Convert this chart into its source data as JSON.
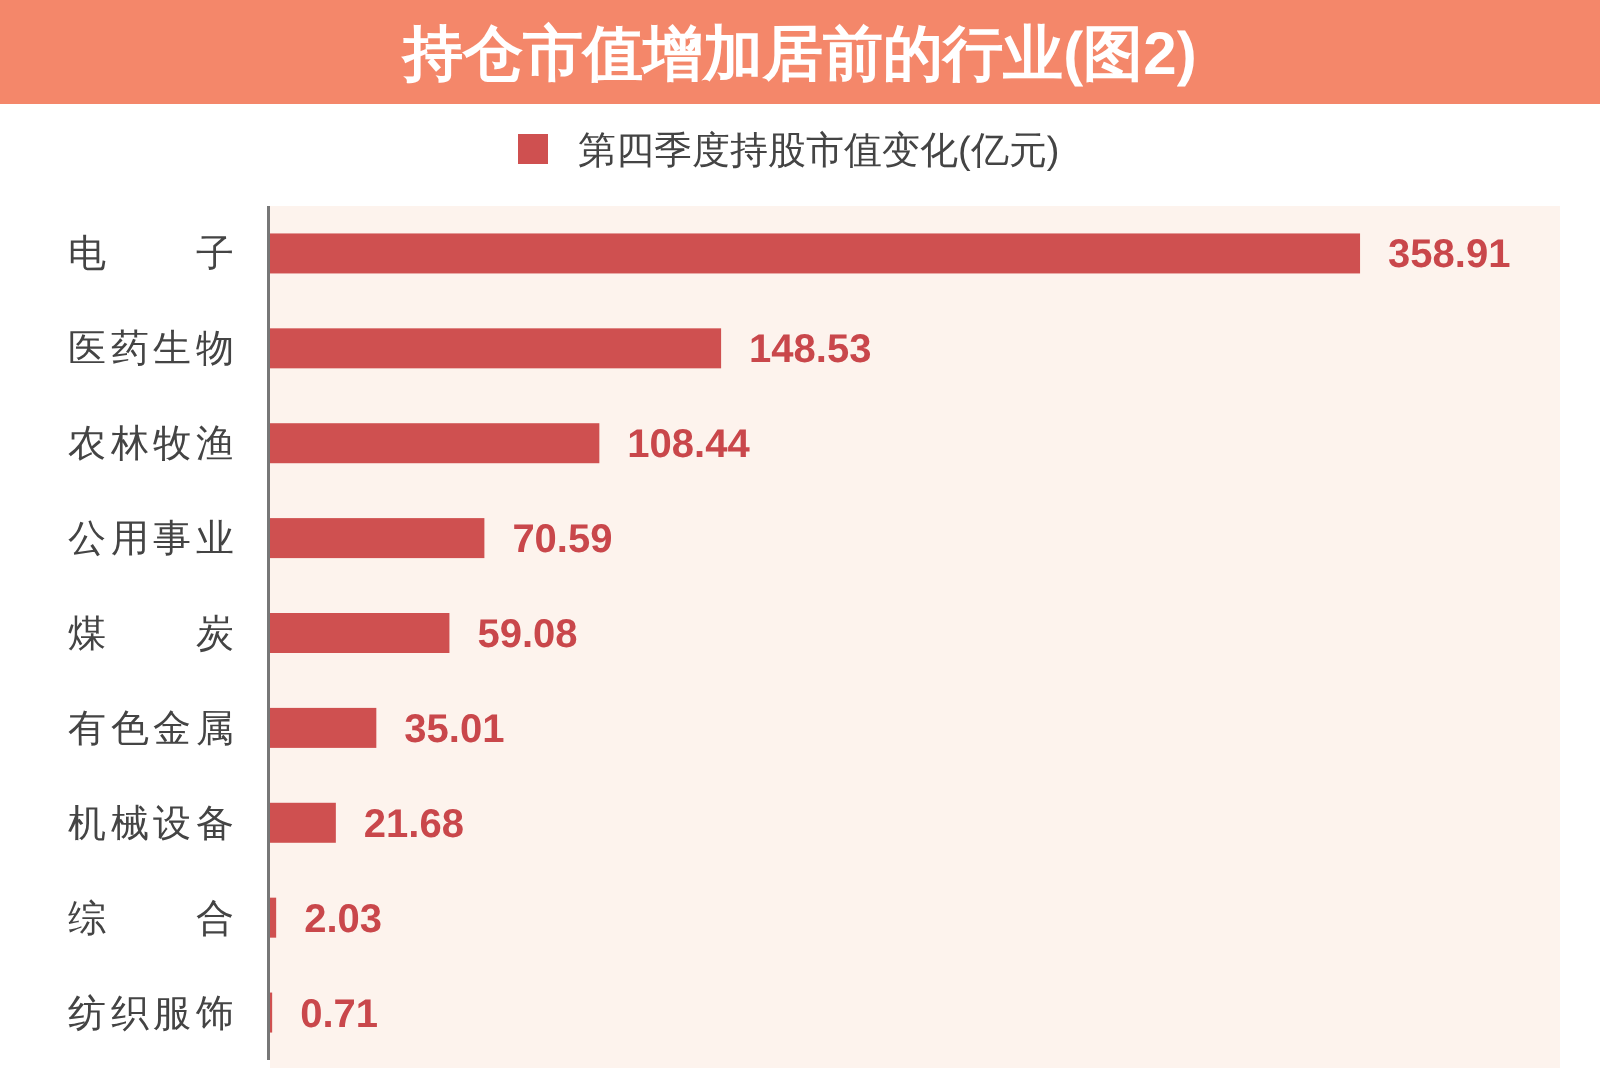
{
  "chart_data": {
    "type": "bar",
    "orientation": "horizontal",
    "title": "持仓市值增加居前的行业(图2)",
    "categories": [
      "电子",
      "医药生物",
      "农林牧渔",
      "公用事业",
      "煤炭",
      "有色金属",
      "机械设备",
      "综合",
      "纺织服饰"
    ],
    "series": [
      {
        "name": "第四季度持股市值变化(亿元)",
        "color": "#cf5050",
        "values": [
          358.91,
          148.53,
          108.44,
          70.59,
          59.08,
          35.01,
          21.68,
          2.03,
          0.71
        ]
      }
    ],
    "data_labels": true,
    "legend": "top"
  }
}
